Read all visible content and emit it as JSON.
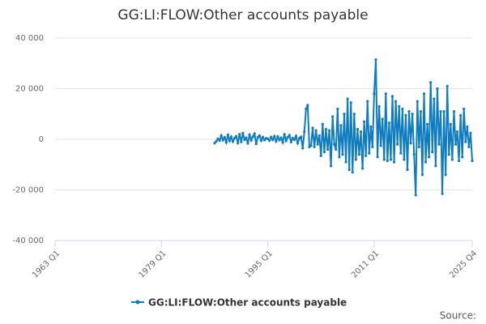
{
  "chart_data": {
    "type": "line",
    "title": "GG:LI:FLOW:Other accounts payable",
    "source": "Source:",
    "categories": [
      "1963 Q1",
      null,
      null,
      null,
      null,
      null,
      null,
      null,
      null,
      null,
      null,
      null,
      null,
      null,
      null,
      null,
      null,
      null,
      null,
      null,
      null,
      null,
      null,
      null,
      null,
      null,
      null,
      null,
      null,
      null,
      null,
      null,
      null,
      null,
      null,
      null,
      null,
      null,
      null,
      null,
      null,
      null,
      null,
      null,
      null,
      null,
      null,
      null,
      null,
      null,
      null,
      null,
      null,
      null,
      null,
      null,
      null,
      null,
      null,
      null,
      null,
      null,
      null,
      null,
      "1979 Q1",
      null,
      null,
      null,
      null,
      null,
      null,
      null,
      null,
      null,
      null,
      null,
      null,
      null,
      null,
      null,
      null,
      null,
      null,
      null,
      null,
      null,
      null,
      null,
      null,
      null,
      null,
      null,
      null,
      null,
      null,
      null,
      null,
      null,
      null,
      null,
      null,
      null,
      null,
      null,
      null,
      null,
      null,
      null,
      null,
      null,
      null,
      null,
      null,
      null,
      null,
      null,
      null,
      null,
      null,
      null,
      null,
      null,
      null,
      null,
      null,
      null,
      null,
      null,
      "1995 Q1",
      null,
      null,
      null,
      null,
      null,
      null,
      null,
      null,
      null,
      null,
      null,
      null,
      null,
      null,
      null,
      null,
      null,
      null,
      null,
      null,
      null,
      null,
      null,
      null,
      null,
      null,
      null,
      null,
      null,
      null,
      null,
      null,
      null,
      null,
      null,
      null,
      null,
      null,
      null,
      null,
      null,
      null,
      null,
      null,
      null,
      null,
      null,
      null,
      null,
      null,
      null,
      null,
      null,
      null,
      null,
      null,
      null,
      null,
      null,
      null,
      null,
      null,
      null,
      "2011 Q1",
      null,
      null,
      null,
      null,
      null,
      null,
      null,
      null,
      null,
      null,
      null,
      null,
      null,
      null,
      null,
      null,
      null,
      null,
      null,
      null,
      null,
      null,
      null,
      null,
      null,
      null,
      null,
      null,
      null,
      null,
      null,
      null,
      null,
      null,
      null,
      null,
      null,
      null,
      null,
      null,
      null,
      null,
      null,
      null,
      null,
      null,
      null,
      null,
      null,
      null,
      null,
      null,
      null,
      null,
      null,
      null,
      null,
      null,
      "2025 Q4"
    ],
    "series": [
      {
        "name": "GG:LI:FLOW:Other accounts payable",
        "color": "#0f7cbf",
        "values": [
          null,
          null,
          null,
          null,
          null,
          null,
          null,
          null,
          null,
          null,
          null,
          null,
          null,
          null,
          null,
          null,
          null,
          null,
          null,
          null,
          null,
          null,
          null,
          null,
          null,
          null,
          null,
          null,
          null,
          null,
          null,
          null,
          null,
          null,
          null,
          null,
          null,
          null,
          null,
          null,
          null,
          null,
          null,
          null,
          null,
          null,
          null,
          null,
          null,
          null,
          null,
          null,
          null,
          null,
          null,
          null,
          null,
          null,
          null,
          null,
          null,
          null,
          null,
          null,
          null,
          null,
          null,
          null,
          null,
          null,
          null,
          null,
          null,
          null,
          null,
          null,
          null,
          null,
          null,
          null,
          null,
          null,
          null,
          null,
          null,
          null,
          null,
          null,
          null,
          null,
          null,
          null,
          null,
          null,
          null,
          null,
          -1500,
          -800,
          200,
          -500,
          1500,
          -300,
          800,
          -1200,
          1800,
          -600,
          1000,
          -900,
          500,
          1200,
          -1500,
          2000,
          -1000,
          2500,
          -200,
          600,
          -1600,
          1900,
          -400,
          1000,
          2200,
          -1800,
          800,
          1500,
          -500,
          900,
          -300,
          400,
          200,
          -500,
          900,
          -200,
          1200,
          -800,
          1100,
          -300,
          600,
          -1200,
          2000,
          -600,
          800,
          1600,
          -1000,
          500,
          -200,
          1300,
          -1500,
          400,
          1000,
          -3500,
          3000,
          12000,
          13500,
          -3000,
          -2500,
          4500,
          -3000,
          3500,
          -2000,
          1500,
          -6500,
          6000,
          -5000,
          4000,
          -4000,
          3500,
          -10500,
          9000,
          -2000,
          -4000,
          12000,
          -7000,
          5500,
          -6000,
          10000,
          -9000,
          16000,
          -12000,
          14500,
          -13000,
          10000,
          -8000,
          4000,
          -6000,
          3000,
          -11500,
          7000,
          -6500,
          15000,
          -5500,
          5000,
          -3000,
          18000,
          31500,
          -7000,
          13000,
          -2500,
          8000,
          -8000,
          18000,
          -8500,
          6500,
          -8000,
          17000,
          -9000,
          15000,
          -2000,
          13000,
          -5500,
          12000,
          -8000,
          9500,
          -12000,
          11000,
          -1500,
          10000,
          -6000,
          -22000,
          15000,
          -3000,
          11000,
          -14000,
          18000,
          -9000,
          6000,
          -7000,
          22500,
          -5000,
          16000,
          -10500,
          20000,
          -2000,
          11000,
          -21500,
          11000,
          -14000,
          21000,
          -6000,
          6000,
          -8000,
          11000,
          -2000,
          3000,
          -8500,
          9500,
          -7000,
          12000,
          -1000,
          5000,
          -3000,
          2500,
          -8500
        ]
      }
    ],
    "ylim": [
      -40000,
      40000
    ],
    "yticks": [
      {
        "value": -40000,
        "label": "-40 000"
      },
      {
        "value": -20000,
        "label": "-20 000"
      },
      0,
      {
        "value": 20000,
        "label": "20 000"
      },
      {
        "value": 40000,
        "label": "40 000"
      }
    ],
    "grid": true
  }
}
